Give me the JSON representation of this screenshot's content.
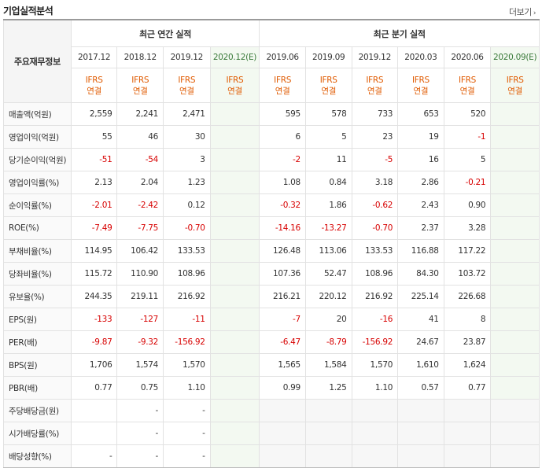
{
  "header": {
    "title": "기업실적분석",
    "more_label": "더보기",
    "more_arrow": "›"
  },
  "table": {
    "corner_label": "주요재무정보",
    "groups": {
      "annual": "최근 연간 실적",
      "quarterly": "최근 분기 실적"
    },
    "periods": [
      "2017.12",
      "2018.12",
      "2019.12",
      "2020.12(E)",
      "2019.06",
      "2019.09",
      "2019.12",
      "2020.03",
      "2020.06",
      "2020.09(E)"
    ],
    "standard_line1": "IFRS",
    "standard_line2": "연결",
    "rows": [
      {
        "label": "매출액(억원)",
        "values": [
          "2,559",
          "2,241",
          "2,471",
          "",
          "595",
          "578",
          "733",
          "653",
          "520",
          ""
        ]
      },
      {
        "label": "영업이익(억원)",
        "values": [
          "55",
          "46",
          "30",
          "",
          "6",
          "5",
          "23",
          "19",
          "-1",
          ""
        ]
      },
      {
        "label": "당기순이익(억원)",
        "values": [
          "-51",
          "-54",
          "3",
          "",
          "-2",
          "11",
          "-5",
          "16",
          "5",
          ""
        ]
      },
      {
        "label": "영업이익률(%)",
        "values": [
          "2.13",
          "2.04",
          "1.23",
          "",
          "1.08",
          "0.84",
          "3.18",
          "2.86",
          "-0.21",
          ""
        ]
      },
      {
        "label": "순이익률(%)",
        "values": [
          "-2.01",
          "-2.42",
          "0.12",
          "",
          "-0.32",
          "1.86",
          "-0.62",
          "2.43",
          "0.90",
          ""
        ]
      },
      {
        "label": "ROE(%)",
        "values": [
          "-7.49",
          "-7.75",
          "-0.70",
          "",
          "-14.16",
          "-13.27",
          "-0.70",
          "2.37",
          "3.28",
          ""
        ]
      },
      {
        "label": "부채비율(%)",
        "values": [
          "114.95",
          "106.42",
          "133.53",
          "",
          "126.48",
          "113.06",
          "133.53",
          "116.88",
          "117.22",
          ""
        ]
      },
      {
        "label": "당좌비율(%)",
        "values": [
          "115.72",
          "110.90",
          "108.96",
          "",
          "107.36",
          "52.47",
          "108.96",
          "84.30",
          "103.72",
          ""
        ]
      },
      {
        "label": "유보율(%)",
        "values": [
          "244.35",
          "219.11",
          "216.92",
          "",
          "216.21",
          "220.12",
          "216.92",
          "225.14",
          "226.68",
          ""
        ]
      },
      {
        "label": "EPS(원)",
        "values": [
          "-133",
          "-127",
          "-11",
          "",
          "-7",
          "20",
          "-16",
          "41",
          "8",
          ""
        ]
      },
      {
        "label": "PER(배)",
        "values": [
          "-9.87",
          "-9.32",
          "-156.92",
          "",
          "-6.47",
          "-8.79",
          "-156.92",
          "24.67",
          "23.87",
          ""
        ]
      },
      {
        "label": "BPS(원)",
        "values": [
          "1,706",
          "1,574",
          "1,570",
          "",
          "1,565",
          "1,584",
          "1,570",
          "1,610",
          "1,624",
          ""
        ]
      },
      {
        "label": "PBR(배)",
        "values": [
          "0.77",
          "0.75",
          "1.10",
          "",
          "0.99",
          "1.25",
          "1.10",
          "0.57",
          "0.77",
          ""
        ]
      },
      {
        "label": "주당배당금(원)",
        "values": [
          "",
          "-",
          "-",
          "",
          "",
          "",
          "",
          "",
          "",
          ""
        ]
      },
      {
        "label": "시가배당률(%)",
        "values": [
          "",
          "-",
          "-",
          "",
          "",
          "",
          "",
          "",
          "",
          ""
        ]
      },
      {
        "label": "배당성향(%)",
        "values": [
          "-",
          "-",
          "-",
          "",
          "",
          "",
          "",
          "",
          "",
          ""
        ]
      }
    ]
  },
  "colors": {
    "negative": "#d70000",
    "ifrs": "#e05a00",
    "estimate_bg": "#f3f9f1"
  }
}
